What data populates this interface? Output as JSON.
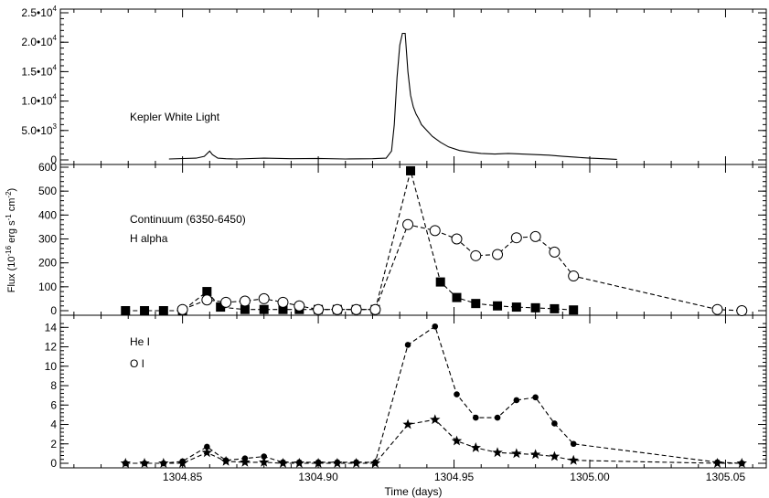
{
  "chart_data": {
    "type": "line",
    "xlabel": "Time (days)",
    "ylabel": "Flux (10^-16 erg s^-1 cm^-2)",
    "xlim": [
      1304.805,
      1305.065
    ],
    "x_ticks": [
      1304.85,
      1304.9,
      1304.95,
      1305.0,
      1305.05
    ],
    "x_tick_labels": [
      "1304.85",
      "1304.90",
      "1304.95",
      "1305.00",
      "1305.05"
    ],
    "panels": [
      {
        "id": "kepler",
        "ylim": [
          0,
          25000
        ],
        "y_ticks": [
          0,
          5000,
          10000,
          15000,
          20000,
          25000
        ],
        "y_tick_labels": [
          {
            "mant": "0",
            "exp": ""
          },
          {
            "mant": "5.0•10",
            "exp": "3"
          },
          {
            "mant": "1.0•10",
            "exp": "4"
          },
          {
            "mant": "1.5•10",
            "exp": "4"
          },
          {
            "mant": "2.0•10",
            "exp": "4"
          },
          {
            "mant": "2.5•10",
            "exp": "4"
          }
        ],
        "labels": [
          "Kepler White Light"
        ],
        "series": [
          {
            "name": "Kepler White Light",
            "style": "solid",
            "x": [
              1304.845,
              1304.855,
              1304.858,
              1304.86,
              1304.861,
              1304.863,
              1304.866,
              1304.87,
              1304.88,
              1304.89,
              1304.9,
              1304.91,
              1304.92,
              1304.925,
              1304.927,
              1304.928,
              1304.929,
              1304.93,
              1304.931,
              1304.932,
              1304.933,
              1304.934,
              1304.935,
              1304.936,
              1304.937,
              1304.938,
              1304.94,
              1304.942,
              1304.945,
              1304.948,
              1304.952,
              1304.956,
              1304.96,
              1304.965,
              1304.97,
              1304.975,
              1304.98,
              1304.985,
              1304.99,
              1304.995,
              1305.0,
              1305.005,
              1305.01
            ],
            "y": [
              150,
              300,
              600,
              1500,
              900,
              300,
              200,
              150,
              300,
              200,
              250,
              150,
              200,
              300,
              1500,
              6000,
              14000,
              19500,
              21500,
              21500,
              15000,
              11000,
              9000,
              7800,
              7000,
              6000,
              5000,
              4000,
              3000,
              2200,
              1600,
              1300,
              1100,
              1000,
              1100,
              1000,
              900,
              800,
              600,
              450,
              300,
              200,
              100
            ]
          }
        ]
      },
      {
        "id": "continuum",
        "ylim": [
          0,
          600
        ],
        "y_ticks": [
          0,
          100,
          200,
          300,
          400,
          500,
          600
        ],
        "y_tick_labels": [
          "0",
          "100",
          "200",
          "300",
          "400",
          "500",
          "600"
        ],
        "labels": [
          "Continuum (6350-6450)",
          "H alpha"
        ],
        "series": [
          {
            "name": "Continuum (6350-6450)",
            "style": "dashed",
            "marker": "square",
            "x": [
              1304.829,
              1304.836,
              1304.843,
              1304.85,
              1304.859,
              1304.864,
              1304.873,
              1304.88,
              1304.887,
              1304.893,
              1304.9,
              1304.907,
              1304.914,
              1304.921,
              1304.934,
              1304.945,
              1304.951,
              1304.958,
              1304.966,
              1304.973,
              1304.98,
              1304.987,
              1304.994
            ],
            "y": [
              0,
              0,
              0,
              0,
              80,
              15,
              5,
              5,
              5,
              5,
              5,
              5,
              5,
              5,
              585,
              120,
              55,
              30,
              20,
              15,
              12,
              8,
              3
            ]
          },
          {
            "name": "H alpha",
            "style": "dashed",
            "marker": "open-circle",
            "x": [
              1304.85,
              1304.859,
              1304.866,
              1304.873,
              1304.88,
              1304.887,
              1304.893,
              1304.9,
              1304.907,
              1304.914,
              1304.921,
              1304.933,
              1304.943,
              1304.951,
              1304.958,
              1304.966,
              1304.973,
              1304.98,
              1304.987,
              1304.994,
              1305.047,
              1305.056
            ],
            "y": [
              5,
              45,
              35,
              40,
              50,
              35,
              20,
              5,
              5,
              5,
              5,
              360,
              335,
              300,
              230,
              235,
              305,
              310,
              245,
              145,
              5,
              0
            ]
          }
        ]
      },
      {
        "id": "lines",
        "ylim": [
          0,
          14.5
        ],
        "y_ticks": [
          0,
          2,
          4,
          6,
          8,
          10,
          12,
          14
        ],
        "y_tick_labels": [
          "0",
          "2",
          "4",
          "6",
          "8",
          "10",
          "12",
          "14"
        ],
        "labels": [
          "He I",
          "O I"
        ],
        "series": [
          {
            "name": "He I",
            "style": "dashed",
            "marker": "filled-circle",
            "x": [
              1304.829,
              1304.836,
              1304.843,
              1304.85,
              1304.859,
              1304.866,
              1304.873,
              1304.88,
              1304.887,
              1304.893,
              1304.9,
              1304.907,
              1304.914,
              1304.921,
              1304.933,
              1304.943,
              1304.951,
              1304.958,
              1304.966,
              1304.973,
              1304.98,
              1304.987,
              1304.994,
              1305.047,
              1305.056
            ],
            "y": [
              0,
              0,
              0,
              0.2,
              1.7,
              0.3,
              0.5,
              0.7,
              0.1,
              0.1,
              0.1,
              0.1,
              0.1,
              0.1,
              12.2,
              14.1,
              7.1,
              4.7,
              4.7,
              6.5,
              6.8,
              4.1,
              2.0,
              0.1,
              0
            ]
          },
          {
            "name": "O I",
            "style": "dashed",
            "marker": "star",
            "x": [
              1304.829,
              1304.836,
              1304.843,
              1304.85,
              1304.859,
              1304.866,
              1304.873,
              1304.88,
              1304.887,
              1304.893,
              1304.9,
              1304.907,
              1304.914,
              1304.921,
              1304.933,
              1304.943,
              1304.951,
              1304.958,
              1304.966,
              1304.973,
              1304.98,
              1304.987,
              1304.994,
              1305.047,
              1305.056
            ],
            "y": [
              0,
              0,
              0,
              0,
              1.1,
              0.2,
              0.1,
              0.1,
              0,
              0,
              0,
              0,
              0,
              0,
              4.0,
              4.5,
              2.3,
              1.6,
              1.1,
              1.0,
              0.9,
              0.7,
              0.3,
              0,
              0
            ]
          }
        ]
      }
    ]
  }
}
